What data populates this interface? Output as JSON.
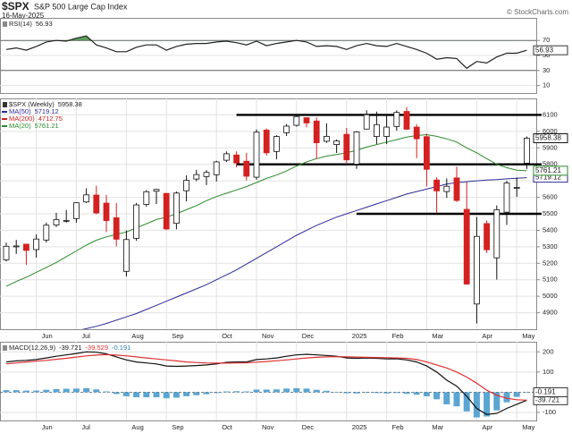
{
  "header": {
    "symbol": "$SPX",
    "name": "S&P 500 Large Cap Index",
    "date": "16-May-2025",
    "credit": "© StockCharts.com"
  },
  "chart_data": [
    {
      "type": "line",
      "legend": "RSI(14)",
      "ylim": [
        0,
        100
      ],
      "yticks": [
        10,
        30,
        50,
        70
      ],
      "grid": true,
      "levels": [
        {
          "value": 70
        },
        {
          "value": 30
        }
      ],
      "fill_above": 70,
      "fill_color": "#3a8a3a",
      "series": [
        {
          "color": "#222222",
          "tag": true,
          "values": [
            58,
            60,
            57,
            62,
            68,
            70,
            69,
            73,
            76,
            64,
            60,
            55,
            55,
            61,
            64,
            64,
            57,
            62,
            65,
            66,
            66,
            68,
            69,
            67,
            64,
            69,
            63,
            66,
            68,
            70,
            68,
            62,
            63,
            62,
            58,
            63,
            66,
            63,
            62,
            66,
            62,
            58,
            53,
            45,
            47,
            46,
            33,
            42,
            40,
            48,
            53,
            53,
            56.93
          ]
        }
      ]
    },
    {
      "type": "candlestick",
      "legend": "$SPX (Weekly)",
      "ylim": [
        4800,
        6200
      ],
      "yticks": [
        4900,
        5000,
        5100,
        5200,
        5300,
        5400,
        5500,
        5600,
        5700,
        5800,
        5900,
        6000,
        6100
      ],
      "grid": true,
      "xticks": [
        {
          "value": 3,
          "label": "Jun"
        },
        {
          "value": 7,
          "label": "Jul"
        },
        {
          "value": 12,
          "label": "Aug"
        },
        {
          "value": 16,
          "label": "Sep"
        },
        {
          "value": 21,
          "label": "Oct"
        },
        {
          "value": 25,
          "label": "Nov"
        },
        {
          "value": 29,
          "label": "Dec"
        },
        {
          "value": 34,
          "label": "2025"
        },
        {
          "value": 38,
          "label": "Feb"
        },
        {
          "value": 42,
          "label": "Mar"
        },
        {
          "value": 47,
          "label": "Apr"
        },
        {
          "value": 51,
          "label": "May"
        }
      ],
      "up_color": "#ffffff",
      "down_color": "#d42020",
      "tag": true,
      "open": [
        5221,
        5305,
        5316,
        5283,
        5341,
        5432,
        5460,
        5471,
        5572,
        5614,
        5565,
        5476,
        5151,
        5351,
        5557,
        5637,
        5624,
        5442,
        5640,
        5711,
        5726,
        5737,
        5825,
        5857,
        5819,
        5722,
        6008,
        5878,
        5992,
        6037,
        6083,
        6063,
        5940,
        5920,
        5982,
        5801,
        6014,
        5969,
        5969,
        6030,
        6121,
        6026,
        5968,
        5705,
        5635,
        5718,
        5527,
        4953,
        5441,
        5233,
        5510,
        5656,
        5807
      ],
      "high": [
        5325,
        5342,
        5315,
        5375,
        5447,
        5506,
        5523,
        5570,
        5655,
        5670,
        5615,
        5566,
        5399,
        5566,
        5644,
        5651,
        5626,
        5636,
        5733,
        5767,
        5765,
        5822,
        5878,
        5878,
        5870,
        6012,
        6018,
        5977,
        6045,
        6099,
        6085,
        6085,
        6049,
        5951,
        6021,
        6002,
        6128,
        6120,
        6101,
        6128,
        6147,
        6044,
        5986,
        5721,
        5715,
        5786,
        5695,
        5481,
        5460,
        5551,
        5700,
        5720,
        5969
      ],
      "low": [
        5211,
        5257,
        5191,
        5234,
        5325,
        5420,
        5447,
        5446,
        5565,
        5497,
        5390,
        5303,
        5120,
        5336,
        5543,
        5560,
        5402,
        5406,
        5575,
        5698,
        5674,
        5696,
        5814,
        5782,
        5702,
        5707,
        5853,
        5830,
        5972,
        6029,
        6024,
        5832,
        5930,
        5869,
        5809,
        5773,
        6012,
        5923,
        5923,
        6004,
        6009,
        5837,
        5666,
        5504,
        5597,
        5572,
        5069,
        4835,
        5262,
        5101,
        5433,
        5603,
        5773
      ],
      "close": [
        5303,
        5305,
        5278,
        5347,
        5431,
        5465,
        5460,
        5567,
        5615,
        5505,
        5459,
        5346,
        5344,
        5554,
        5634,
        5648,
        5408,
        5626,
        5703,
        5738,
        5751,
        5815,
        5864,
        5808,
        5728,
        5995,
        5870,
        5969,
        6032,
        6090,
        6051,
        5931,
        5970,
        5942,
        5827,
        5997,
        6101,
        6041,
        6026,
        6115,
        6013,
        5955,
        5770,
        5639,
        5667,
        5581,
        5074,
        5363,
        5282,
        5525,
        5687,
        5660,
        5958.38
      ],
      "levels": [
        {
          "value": 6100,
          "from": 23
        },
        {
          "value": 5800,
          "from": 23
        },
        {
          "value": 5500,
          "from": 35
        }
      ],
      "overlays": [
        {
          "name": "MA(50)",
          "color": "#2b2b9a",
          "tag": true,
          "values": [
            4700,
            4712,
            4725,
            4738,
            4751,
            4764,
            4777,
            4790,
            4803,
            4818,
            4835,
            4855,
            4875,
            4895,
            4920,
            4945,
            4970,
            4995,
            5020,
            5045,
            5070,
            5100,
            5130,
            5160,
            5195,
            5230,
            5265,
            5300,
            5335,
            5370,
            5400,
            5430,
            5455,
            5480,
            5500,
            5520,
            5540,
            5560,
            5580,
            5600,
            5620,
            5635,
            5650,
            5665,
            5680,
            5690,
            5695,
            5700,
            5705,
            5708,
            5712,
            5716,
            5719.12
          ]
        },
        {
          "name": "MA(200)",
          "color": "#cc2020",
          "last": 4712.75
        },
        {
          "name": "MA(20)",
          "color": "#2a8a2a",
          "tag": true,
          "values": [
            5060,
            5090,
            5115,
            5145,
            5175,
            5205,
            5240,
            5275,
            5310,
            5340,
            5360,
            5375,
            5390,
            5415,
            5440,
            5465,
            5480,
            5500,
            5525,
            5550,
            5580,
            5605,
            5625,
            5645,
            5665,
            5690,
            5715,
            5735,
            5760,
            5790,
            5815,
            5835,
            5850,
            5860,
            5870,
            5885,
            5905,
            5920,
            5935,
            5950,
            5965,
            5975,
            5980,
            5970,
            5955,
            5935,
            5900,
            5870,
            5835,
            5800,
            5780,
            5765,
            5761.21
          ]
        }
      ]
    },
    {
      "type": "line",
      "legend": "MACD(12,26,9)",
      "ylim": [
        -140,
        250
      ],
      "yticks": [
        -100,
        100,
        200
      ],
      "grid": true,
      "levels": [
        {
          "value": 0,
          "dash": true
        }
      ],
      "xticks": [
        {
          "value": 3,
          "label": "Jun"
        },
        {
          "value": 7,
          "label": "Jul"
        },
        {
          "value": 12,
          "label": "Aug"
        },
        {
          "value": 16,
          "label": "Sep"
        },
        {
          "value": 21,
          "label": "Oct"
        },
        {
          "value": 25,
          "label": "Nov"
        },
        {
          "value": 29,
          "label": "Dec"
        },
        {
          "value": 34,
          "label": "2025"
        },
        {
          "value": 38,
          "label": "Feb"
        },
        {
          "value": 42,
          "label": "Mar"
        },
        {
          "value": 47,
          "label": "Apr"
        },
        {
          "value": 51,
          "label": "May"
        }
      ],
      "series": [
        {
          "color": "#111111",
          "tag": true,
          "values": [
            150,
            155,
            158,
            162,
            170,
            178,
            185,
            192,
            200,
            198,
            190,
            175,
            160,
            150,
            145,
            140,
            130,
            128,
            130,
            132,
            135,
            140,
            148,
            150,
            150,
            162,
            165,
            170,
            178,
            185,
            188,
            185,
            182,
            178,
            170,
            168,
            170,
            168,
            165,
            166,
            160,
            150,
            130,
            100,
            60,
            30,
            -20,
            -80,
            -110,
            -105,
            -80,
            -60,
            -39.721
          ]
        },
        {
          "color": "#e03030",
          "values": [
            140,
            145,
            150,
            154,
            158,
            163,
            168,
            174,
            180,
            184,
            186,
            184,
            180,
            175,
            170,
            165,
            160,
            155,
            150,
            147,
            145,
            144,
            144,
            145,
            146,
            149,
            152,
            156,
            160,
            165,
            170,
            173,
            175,
            176,
            175,
            174,
            173,
            172,
            171,
            170,
            168,
            162,
            150,
            135,
            120,
            100,
            75,
            45,
            10,
            -15,
            -30,
            -37,
            -39.529
          ]
        },
        {
          "color": "#5aa5d2",
          "style": "bar",
          "tag": true,
          "values": [
            10,
            10,
            8,
            8,
            12,
            15,
            17,
            18,
            20,
            14,
            4,
            -9,
            -20,
            -25,
            -25,
            -25,
            -30,
            -27,
            -20,
            -15,
            -10,
            -4,
            4,
            5,
            4,
            13,
            13,
            14,
            18,
            20,
            18,
            12,
            7,
            2,
            -5,
            -6,
            -3,
            -4,
            -6,
            -4,
            -8,
            -12,
            -20,
            -35,
            -60,
            -70,
            -95,
            -125,
            -120,
            -90,
            -50,
            -23,
            -0.191
          ]
        }
      ]
    }
  ]
}
